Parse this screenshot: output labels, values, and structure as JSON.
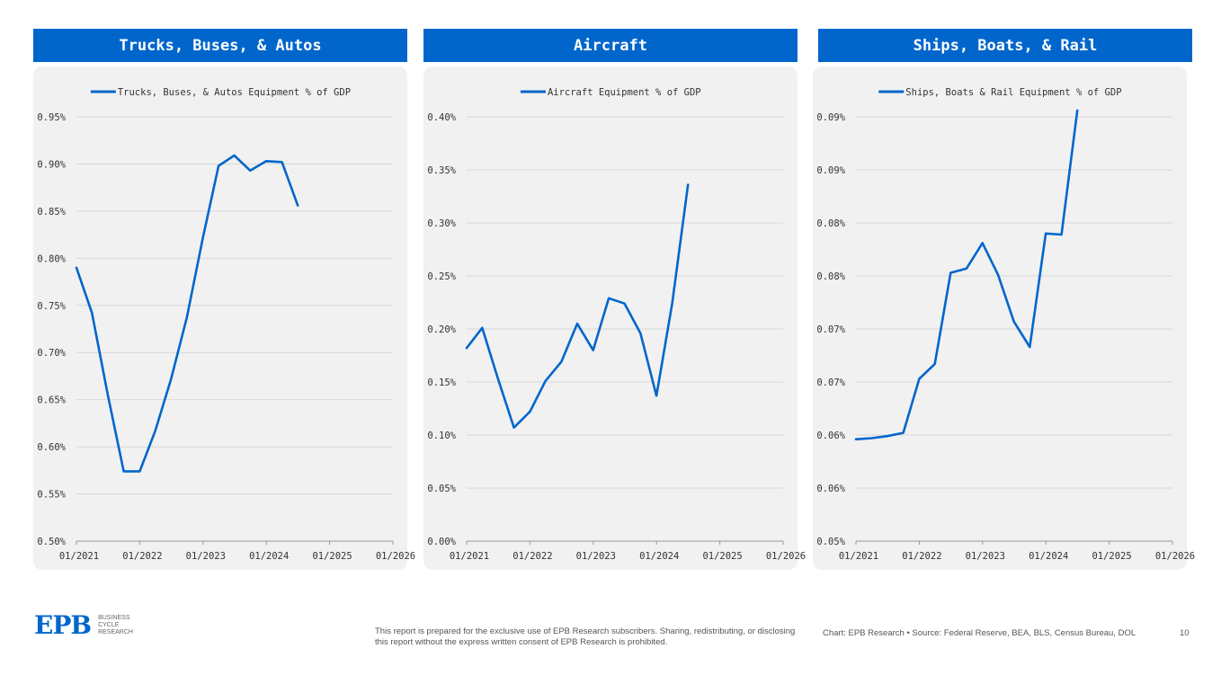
{
  "panels": [
    {
      "header": "Trucks, Buses, & Autos"
    },
    {
      "header": "Aircraft"
    },
    {
      "header": "Ships, Boats, & Rail"
    }
  ],
  "colors": {
    "accent": "#0066cc",
    "card_bg": "#f1f1f1",
    "grid": "#d8d8d8"
  },
  "chart_data": [
    {
      "type": "line",
      "title": "",
      "xlabel": "",
      "ylabel": "",
      "legend": "top",
      "grid": true,
      "series": [
        {
          "name": "Trucks, Buses, & Autos Equipment % of GDP",
          "x": [
            "2021-01",
            "2021-04",
            "2021-07",
            "2021-10",
            "2022-01",
            "2022-04",
            "2022-07",
            "2022-10",
            "2023-01",
            "2023-04",
            "2023-07",
            "2023-10",
            "2024-01",
            "2024-04",
            "2024-07"
          ],
          "values": [
            0.79,
            0.742,
            0.655,
            0.574,
            0.574,
            0.617,
            0.672,
            0.738,
            0.822,
            0.898,
            0.909,
            0.893,
            0.903,
            0.902,
            0.856
          ]
        }
      ],
      "x_ticks": [
        "01/2021",
        "01/2022",
        "01/2023",
        "01/2024",
        "01/2025",
        "01/2026"
      ],
      "y_ticks": [
        "0.50%",
        "0.55%",
        "0.60%",
        "0.65%",
        "0.70%",
        "0.75%",
        "0.80%",
        "0.85%",
        "0.90%",
        "0.95%"
      ],
      "ylim": [
        0.5,
        0.95
      ]
    },
    {
      "type": "line",
      "title": "",
      "xlabel": "",
      "ylabel": "",
      "legend": "top",
      "grid": true,
      "series": [
        {
          "name": "Aircraft Equipment % of GDP",
          "x": [
            "2021-01",
            "2021-04",
            "2021-07",
            "2021-10",
            "2022-01",
            "2022-04",
            "2022-07",
            "2022-10",
            "2023-01",
            "2023-04",
            "2023-07",
            "2023-10",
            "2024-01",
            "2024-04",
            "2024-07"
          ],
          "values": [
            0.182,
            0.201,
            0.153,
            0.107,
            0.122,
            0.151,
            0.169,
            0.205,
            0.18,
            0.229,
            0.224,
            0.196,
            0.137,
            0.224,
            0.336
          ]
        }
      ],
      "x_ticks": [
        "01/2021",
        "01/2022",
        "01/2023",
        "01/2024",
        "01/2025",
        "01/2026"
      ],
      "y_ticks": [
        "0.00%",
        "0.05%",
        "0.10%",
        "0.15%",
        "0.20%",
        "0.25%",
        "0.30%",
        "0.35%",
        "0.40%"
      ],
      "ylim": [
        0,
        0.4
      ]
    },
    {
      "type": "line",
      "title": "",
      "xlabel": "",
      "ylabel": "",
      "legend": "top",
      "grid": true,
      "series": [
        {
          "name": "Ships, Boats & Rail Equipment % of GDP",
          "x": [
            "2021-01",
            "2021-04",
            "2021-07",
            "2021-10",
            "2022-01",
            "2022-04",
            "2022-07",
            "2022-10",
            "2023-01",
            "2023-04",
            "2023-07",
            "2023-10",
            "2024-01",
            "2024-04",
            "2024-07"
          ],
          "values": [
            0.0596,
            0.0597,
            0.0599,
            0.0602,
            0.0653,
            0.0667,
            0.0753,
            0.0757,
            0.0781,
            0.0751,
            0.0707,
            0.0683,
            0.079,
            0.0789,
            0.0906
          ]
        }
      ],
      "x_ticks": [
        "01/2021",
        "01/2022",
        "01/2023",
        "01/2024",
        "01/2025",
        "01/2026"
      ],
      "y_ticks": [
        "0.05%",
        "0.06%",
        "0.06%",
        "0.07%",
        "0.07%",
        "0.08%",
        "0.08%",
        "0.09%",
        "0.09%"
      ],
      "ylim": [
        0.05,
        0.09
      ]
    }
  ],
  "footer": {
    "logo_text": "EPB",
    "logo_sub": [
      "Business",
      "Cycle",
      "Research"
    ],
    "disclaimer": "This report is prepared for the exclusive use of EPB Research subscribers. Sharing, redistributing, or disclosing this report without the express written consent of EPB Research is prohibited.",
    "source": "Chart: EPB Research  •  Source: Federal Reserve, BEA, BLS, Census Bureau, DOL",
    "page_number": "10"
  }
}
